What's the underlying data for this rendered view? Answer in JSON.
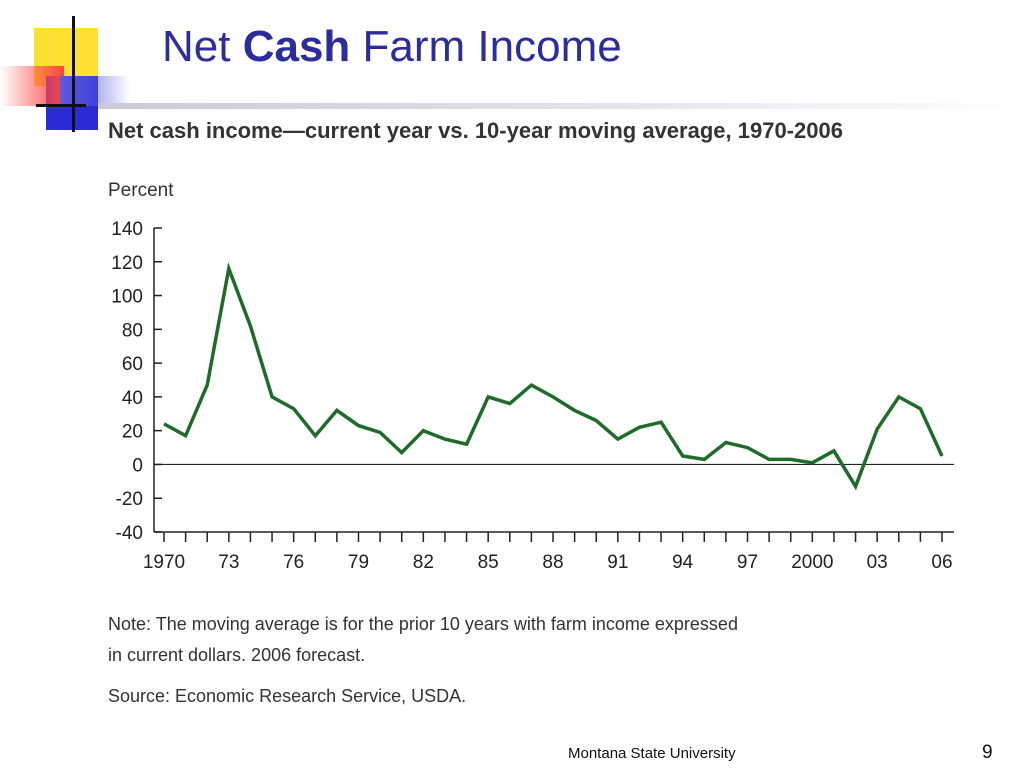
{
  "slide": {
    "title_pre": "Net ",
    "title_bold": "Cash",
    "title_post": " Farm Income",
    "footer": "Montana State University",
    "page_number": "9"
  },
  "chart_data": {
    "type": "line",
    "title": "Net cash income—current year vs. 10-year moving average, 1970-2006",
    "ylabel": "Percent",
    "xlabel": "",
    "ylim": [
      -40,
      140
    ],
    "yticks": [
      -40,
      -20,
      0,
      20,
      40,
      60,
      80,
      100,
      120,
      140
    ],
    "x": [
      1970,
      1971,
      1972,
      1973,
      1974,
      1975,
      1976,
      1977,
      1978,
      1979,
      1980,
      1981,
      1982,
      1983,
      1984,
      1985,
      1986,
      1987,
      1988,
      1989,
      1990,
      1991,
      1992,
      1993,
      1994,
      1995,
      1996,
      1997,
      1998,
      1999,
      2000,
      2001,
      2002,
      2003,
      2004,
      2005,
      2006
    ],
    "x_tick_values": [
      1970,
      1973,
      1976,
      1979,
      1982,
      1985,
      1988,
      1991,
      1994,
      1997,
      2000,
      2003,
      2006
    ],
    "x_tick_labels": [
      "1970",
      "73",
      "76",
      "79",
      "82",
      "85",
      "88",
      "91",
      "94",
      "97",
      "2000",
      "03",
      "06"
    ],
    "series": [
      {
        "name": "",
        "color": "#1e6b2a",
        "values": [
          24,
          17,
          47,
          116,
          82,
          40,
          33,
          17,
          32,
          23,
          19,
          7,
          20,
          15,
          12,
          40,
          36,
          47,
          40,
          32,
          26,
          15,
          22,
          25,
          5,
          3,
          13,
          10,
          3,
          3,
          1,
          8,
          -13,
          21,
          40,
          33,
          5
        ]
      }
    ],
    "zero_line": true,
    "note_line1": "Note: The moving average is for the prior 10 years with farm income expressed",
    "note_line2": "in current dollars.   2006 forecast.",
    "source": "Source: Economic Research Service, USDA."
  }
}
